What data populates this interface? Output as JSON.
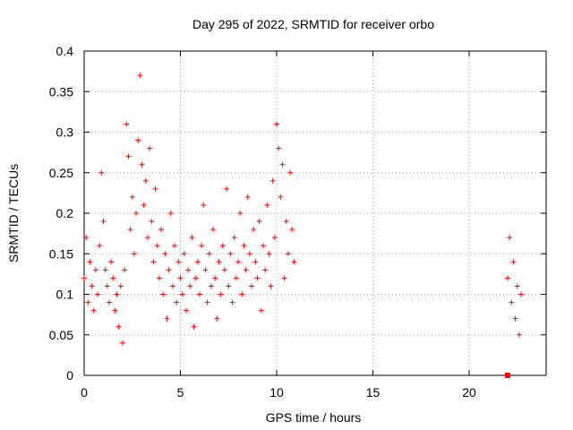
{
  "chart_data": {
    "type": "scatter",
    "title": "Day 295 of 2022, SRMTID for receiver orbo",
    "xlabel": "GPS time / hours",
    "ylabel": "SRMTID / TECUs",
    "xlim": [
      0,
      24
    ],
    "ylim": [
      0,
      0.4
    ],
    "xticks": [
      0,
      5,
      10,
      15,
      20
    ],
    "xtick_labels": [
      "0",
      "5",
      "10",
      "15",
      "20"
    ],
    "yticks": [
      0,
      0.05,
      0.1,
      0.15,
      0.2,
      0.25,
      0.3,
      0.35,
      0.4
    ],
    "ytick_labels": [
      "0",
      "0.05",
      "0.1",
      "0.15",
      "0.2",
      "0.25",
      "0.3",
      "0.35",
      "0.4"
    ],
    "grid": true,
    "marker": "+",
    "color": "#ff0000",
    "series": [
      {
        "name": "SRMTID",
        "x": [
          0.0,
          0.1,
          0.2,
          0.3,
          0.4,
          0.5,
          0.6,
          0.7,
          0.8,
          0.9,
          1.0,
          1.1,
          1.2,
          1.3,
          1.4,
          1.5,
          1.6,
          1.7,
          1.8,
          1.9,
          2.0,
          2.1,
          2.2,
          2.3,
          2.4,
          2.5,
          2.6,
          2.7,
          2.8,
          2.9,
          3.0,
          3.1,
          3.2,
          3.3,
          3.4,
          3.5,
          3.6,
          3.7,
          3.8,
          3.9,
          4.0,
          4.1,
          4.2,
          4.3,
          4.4,
          4.5,
          4.6,
          4.7,
          4.8,
          4.9,
          5.0,
          5.1,
          5.2,
          5.3,
          5.4,
          5.5,
          5.6,
          5.7,
          5.8,
          5.9,
          6.0,
          6.1,
          6.2,
          6.3,
          6.4,
          6.5,
          6.6,
          6.7,
          6.8,
          6.9,
          7.0,
          7.1,
          7.2,
          7.3,
          7.4,
          7.5,
          7.6,
          7.7,
          7.8,
          7.9,
          8.0,
          8.1,
          8.2,
          8.3,
          8.4,
          8.5,
          8.6,
          8.7,
          8.8,
          8.9,
          9.0,
          9.1,
          9.2,
          9.3,
          9.4,
          9.5,
          9.6,
          9.7,
          9.8,
          9.9,
          10.0,
          10.1,
          10.2,
          10.3,
          10.4,
          10.5,
          10.6,
          10.7,
          10.8,
          10.9,
          22.0,
          22.1,
          22.2,
          22.3,
          22.4,
          22.5,
          22.6,
          22.7
        ],
        "y": [
          0.12,
          0.17,
          0.09,
          0.14,
          0.11,
          0.08,
          0.13,
          0.1,
          0.16,
          0.25,
          0.19,
          0.13,
          0.11,
          0.09,
          0.14,
          0.12,
          0.08,
          0.1,
          0.06,
          0.11,
          0.04,
          0.13,
          0.31,
          0.27,
          0.18,
          0.22,
          0.15,
          0.2,
          0.29,
          0.37,
          0.26,
          0.21,
          0.24,
          0.17,
          0.28,
          0.19,
          0.14,
          0.23,
          0.16,
          0.12,
          0.18,
          0.1,
          0.15,
          0.07,
          0.13,
          0.2,
          0.11,
          0.16,
          0.09,
          0.14,
          0.12,
          0.1,
          0.15,
          0.08,
          0.13,
          0.11,
          0.17,
          0.06,
          0.12,
          0.14,
          0.1,
          0.16,
          0.21,
          0.13,
          0.09,
          0.15,
          0.11,
          0.18,
          0.12,
          0.07,
          0.14,
          0.1,
          0.16,
          0.13,
          0.23,
          0.11,
          0.15,
          0.09,
          0.17,
          0.12,
          0.14,
          0.2,
          0.1,
          0.16,
          0.13,
          0.22,
          0.15,
          0.11,
          0.18,
          0.14,
          0.12,
          0.19,
          0.08,
          0.16,
          0.13,
          0.21,
          0.15,
          0.11,
          0.24,
          0.17,
          0.31,
          0.28,
          0.22,
          0.26,
          0.12,
          0.19,
          0.15,
          0.25,
          0.18,
          0.14,
          0.12,
          0.17,
          0.09,
          0.14,
          0.07,
          0.11,
          0.05,
          0.1
        ]
      }
    ],
    "markers": [
      {
        "name": "zero-marker",
        "x": 22.0,
        "y": 0.0,
        "shape": "square"
      }
    ]
  }
}
